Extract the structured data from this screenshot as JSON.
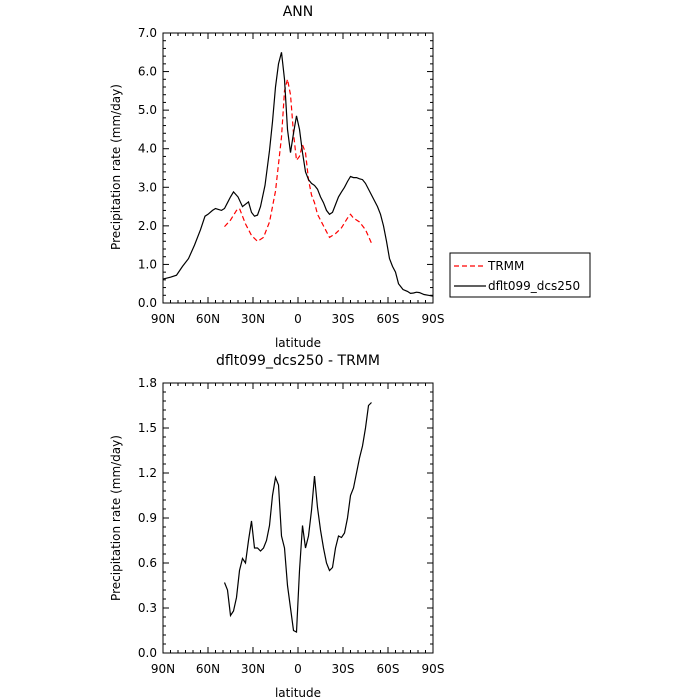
{
  "chart_data": [
    {
      "type": "line",
      "title": "ANN",
      "xlabel": "latitude",
      "ylabel": "Precipitation rate (mm/day)",
      "xlim": [
        90,
        -90
      ],
      "ylim": [
        0,
        7
      ],
      "x_ticks": [
        90,
        60,
        30,
        0,
        -30,
        -60,
        -90
      ],
      "x_tick_labels": [
        "90N",
        "60N",
        "30N",
        "0",
        "30S",
        "60S",
        "90S"
      ],
      "y_ticks": [
        0,
        1,
        2,
        3,
        4,
        5,
        6,
        7
      ],
      "y_tick_labels": [
        "0.0",
        "1.0",
        "2.0",
        "3.0",
        "4.0",
        "5.0",
        "6.0",
        "7.0"
      ],
      "legend": "outside-right",
      "series": [
        {
          "name": "TRMM",
          "color": "#ff0000",
          "dash": "dashed",
          "x": [
            49,
            45,
            41,
            39,
            35,
            31,
            27,
            23,
            19,
            15,
            11,
            9,
            7,
            5,
            3,
            1,
            -1,
            -3,
            -5,
            -7,
            -9,
            -11,
            -13,
            -17,
            -21,
            -25,
            -29,
            -33,
            -35,
            -37,
            -41,
            -45,
            -49
          ],
          "y": [
            1.98,
            2.15,
            2.4,
            2.45,
            2.05,
            1.75,
            1.6,
            1.7,
            2.1,
            2.9,
            4.3,
            5.5,
            5.8,
            5.4,
            4.4,
            3.7,
            3.8,
            4.1,
            3.9,
            3.2,
            2.8,
            2.6,
            2.3,
            2.0,
            1.7,
            1.8,
            1.95,
            2.2,
            2.3,
            2.2,
            2.1,
            1.9,
            1.55
          ]
        },
        {
          "name": "dflt099_dcs250",
          "color": "#000000",
          "dash": "solid",
          "x": [
            90,
            85,
            81,
            77,
            73,
            69,
            65,
            62,
            60,
            57,
            55,
            51,
            49,
            47,
            45,
            43,
            40,
            37,
            33,
            31,
            29,
            27,
            25,
            22,
            19,
            17,
            15,
            13,
            11,
            9,
            7,
            5,
            3,
            1,
            -1,
            -3,
            -5,
            -7,
            -9,
            -11,
            -13,
            -15,
            -17,
            -19,
            -21,
            -23,
            -25,
            -27,
            -29,
            -31,
            -33,
            -35,
            -37,
            -39,
            -41,
            -43,
            -45,
            -49,
            -53,
            -55,
            -57,
            -59,
            -61,
            -63,
            -65,
            -67,
            -70,
            -73,
            -75,
            -77,
            -79,
            -81,
            -84,
            -87,
            -90
          ],
          "y": [
            0.62,
            0.67,
            0.72,
            0.95,
            1.15,
            1.5,
            1.9,
            2.25,
            2.3,
            2.4,
            2.45,
            2.4,
            2.45,
            2.6,
            2.75,
            2.88,
            2.75,
            2.5,
            2.62,
            2.35,
            2.25,
            2.28,
            2.5,
            3.05,
            3.95,
            4.7,
            5.6,
            6.2,
            6.5,
            5.8,
            4.5,
            3.9,
            4.4,
            4.85,
            4.5,
            3.9,
            3.4,
            3.2,
            3.1,
            3.05,
            2.95,
            2.75,
            2.6,
            2.4,
            2.3,
            2.35,
            2.55,
            2.75,
            2.88,
            3.0,
            3.15,
            3.28,
            3.25,
            3.25,
            3.22,
            3.2,
            3.1,
            2.8,
            2.5,
            2.3,
            2.0,
            1.6,
            1.15,
            0.95,
            0.8,
            0.5,
            0.35,
            0.3,
            0.25,
            0.26,
            0.28,
            0.27,
            0.22,
            0.2,
            0.18
          ]
        }
      ]
    },
    {
      "type": "line",
      "title": "dflt099_dcs250 - TRMM",
      "xlabel": "latitude",
      "ylabel": "Precipitation rate (mm/day)",
      "xlim": [
        90,
        -90
      ],
      "ylim": [
        0,
        1.8
      ],
      "x_ticks": [
        90,
        60,
        30,
        0,
        -30,
        -60,
        -90
      ],
      "x_tick_labels": [
        "90N",
        "60N",
        "30N",
        "0",
        "30S",
        "60S",
        "90S"
      ],
      "y_ticks": [
        0,
        0.3,
        0.6,
        0.9,
        1.2,
        1.5,
        1.8
      ],
      "y_tick_labels": [
        "0.0",
        "0.3",
        "0.6",
        "0.9",
        "1.2",
        "1.5",
        "1.8"
      ],
      "series": [
        {
          "name": "",
          "color": "#000000",
          "dash": "solid",
          "x": [
            49,
            47,
            45,
            43,
            41,
            39,
            37,
            35,
            33,
            31,
            29,
            27,
            25,
            23,
            21,
            19,
            17,
            15,
            13,
            11,
            9,
            7,
            5,
            3,
            1,
            -1,
            -3,
            -5,
            -7,
            -9,
            -11,
            -13,
            -15,
            -17,
            -19,
            -21,
            -23,
            -25,
            -27,
            -29,
            -31,
            -33,
            -35,
            -37,
            -39,
            -41,
            -43,
            -45,
            -47,
            -49
          ],
          "y": [
            0.47,
            0.42,
            0.25,
            0.28,
            0.37,
            0.55,
            0.63,
            0.6,
            0.75,
            0.88,
            0.7,
            0.7,
            0.68,
            0.7,
            0.75,
            0.85,
            1.05,
            1.17,
            1.12,
            0.78,
            0.7,
            0.45,
            0.3,
            0.15,
            0.14,
            0.55,
            0.85,
            0.7,
            0.78,
            0.95,
            1.18,
            0.97,
            0.82,
            0.7,
            0.6,
            0.55,
            0.57,
            0.7,
            0.78,
            0.77,
            0.8,
            0.9,
            1.05,
            1.1,
            1.2,
            1.3,
            1.38,
            1.5,
            1.65,
            1.67
          ]
        }
      ]
    }
  ]
}
